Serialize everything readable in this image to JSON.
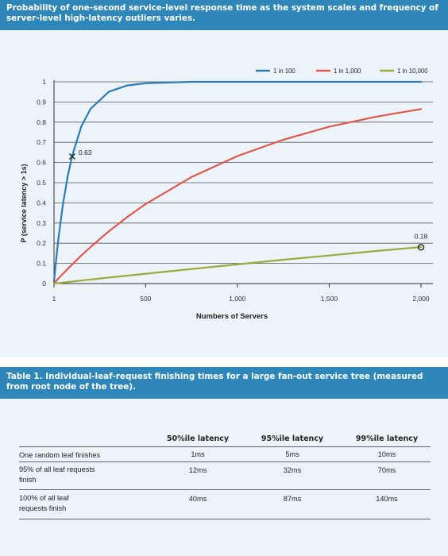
{
  "figure": {
    "caption": "Probability of one-second service-level response time as the system scales and frequency of server-level high-latency outliers varies."
  },
  "chart_data": {
    "type": "line",
    "xlabel": "Numbers of Servers",
    "ylabel": "P (service latency > 1s)",
    "xlim": [
      1,
      2000
    ],
    "ylim": [
      0,
      1
    ],
    "xticks": [
      "1",
      "500",
      "1,000",
      "1,500",
      "2,000"
    ],
    "yticks": [
      "0",
      "0.1",
      "0.2",
      "0.3",
      "0.4",
      "0.5",
      "0.6",
      "0.7",
      "0.8",
      "0.9",
      "1"
    ],
    "grid": "horizontal",
    "legend_position": "top-right",
    "x": [
      1,
      10,
      25,
      50,
      75,
      100,
      150,
      200,
      300,
      400,
      500,
      750,
      1000,
      1250,
      1500,
      1750,
      2000
    ],
    "series": [
      {
        "name": "1 in 100",
        "color": "#2b7bb4",
        "values": [
          0.01,
          0.096,
          0.222,
          0.395,
          0.529,
          0.634,
          0.779,
          0.866,
          0.951,
          0.982,
          0.993,
          1.0,
          1.0,
          1.0,
          1.0,
          1.0,
          1.0
        ]
      },
      {
        "name": "1 in 1,000",
        "color": "#e2574c",
        "values": [
          0.001,
          0.01,
          0.025,
          0.049,
          0.072,
          0.095,
          0.139,
          0.181,
          0.259,
          0.33,
          0.394,
          0.528,
          0.632,
          0.713,
          0.777,
          0.826,
          0.865
        ]
      },
      {
        "name": "1 in 10,000",
        "color": "#9aaa3c",
        "values": [
          0.0,
          0.001,
          0.002,
          0.005,
          0.007,
          0.01,
          0.015,
          0.02,
          0.03,
          0.039,
          0.049,
          0.072,
          0.095,
          0.118,
          0.139,
          0.161,
          0.181
        ]
      }
    ],
    "annotations": [
      {
        "label": "0.63",
        "x": 100,
        "y": 0.63,
        "marker": "x"
      },
      {
        "label": "0.18",
        "x": 2000,
        "y": 0.18,
        "marker": "o"
      }
    ]
  },
  "table": {
    "title": "Table 1. Individual-leaf-request finishing times for a large fan-out service tree (measured from root node of the tree).",
    "headers": [
      "50%ile latency",
      "95%ile latency",
      "99%ile latency"
    ],
    "rows": [
      {
        "label": "One random leaf finishes",
        "values": [
          "1ms",
          "5ms",
          "10ms"
        ]
      },
      {
        "label": "95% of all leaf requests finish",
        "values": [
          "12ms",
          "32ms",
          "70ms"
        ]
      },
      {
        "label": "100% of all leaf requests finish",
        "values": [
          "40ms",
          "87ms",
          "140ms"
        ]
      }
    ]
  }
}
